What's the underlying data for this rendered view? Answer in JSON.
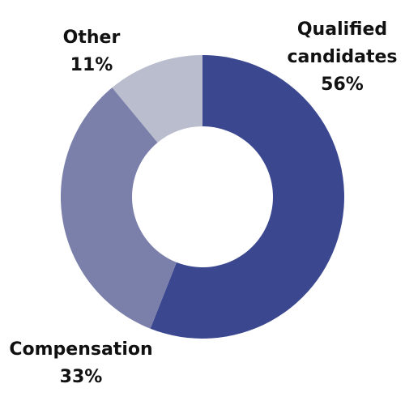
{
  "chart_data": {
    "type": "donut",
    "categories": [
      "Qualified candidates",
      "Compensation",
      "Other"
    ],
    "values": [
      56,
      33,
      11
    ],
    "value_labels": [
      "56%",
      "33%",
      "11%"
    ],
    "colors": [
      "#3b4890",
      "#7b80ab",
      "#babdcd"
    ]
  }
}
